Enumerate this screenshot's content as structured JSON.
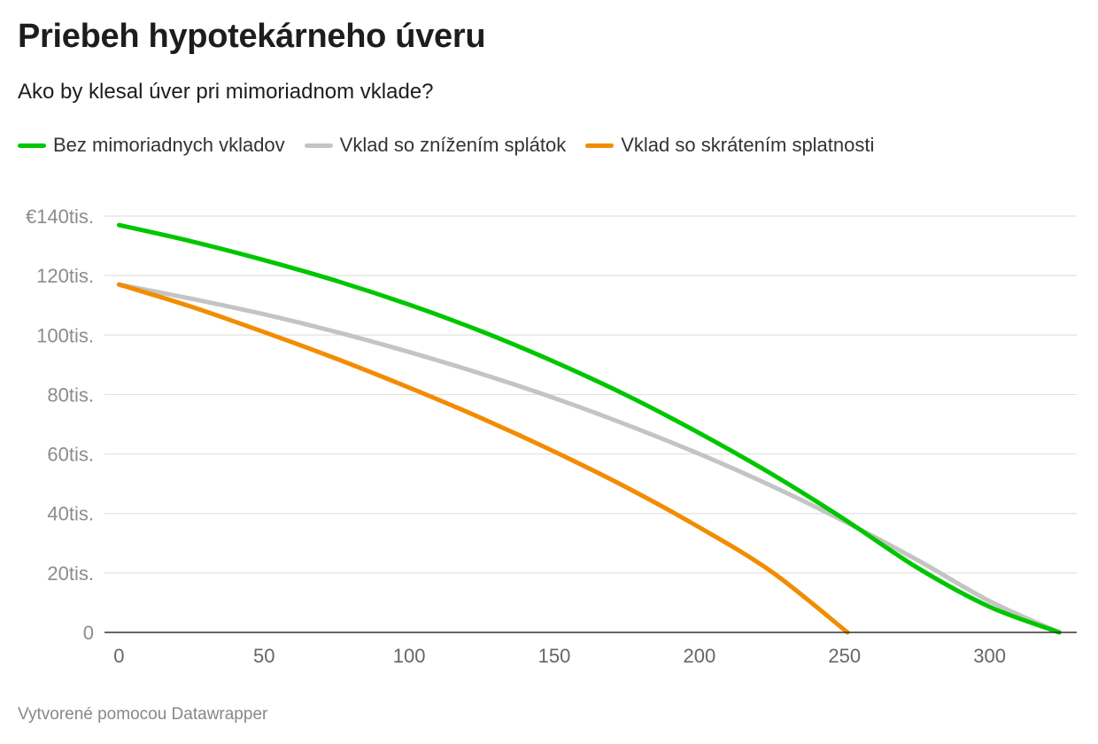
{
  "title": "Priebeh hypotekárneho úveru",
  "subtitle": "Ako by klesal úver pri mimoriadnom vklade?",
  "footer": "Vytvorené pomocou Datawrapper",
  "chart_data": {
    "type": "line",
    "title": "Priebeh hypotekárneho úveru",
    "subtitle": "Ako by klesal úver pri mimoriadnom vklade?",
    "xlabel": "",
    "ylabel": "",
    "xlim": [
      -5,
      330
    ],
    "ylim": [
      0,
      140000
    ],
    "x_ticks": [
      0,
      50,
      100,
      150,
      200,
      250,
      300
    ],
    "y_ticks": [
      0,
      20000,
      40000,
      60000,
      80000,
      100000,
      120000,
      140000
    ],
    "y_tick_labels": [
      "0",
      "20tis.",
      "40tis.",
      "60tis.",
      "80tis.",
      "100tis.",
      "120tis.",
      "€140tis."
    ],
    "grid": true,
    "legend": "top-left",
    "series": [
      {
        "name": "Bez mimoriadnych vkladov",
        "color": "#00c600",
        "points": [
          [
            0,
            137000
          ],
          [
            25,
            131500
          ],
          [
            50,
            125200
          ],
          [
            75,
            118200
          ],
          [
            100,
            110200
          ],
          [
            125,
            101200
          ],
          [
            150,
            91000
          ],
          [
            175,
            79700
          ],
          [
            200,
            67000
          ],
          [
            225,
            53200
          ],
          [
            250,
            38000
          ],
          [
            275,
            21800
          ],
          [
            300,
            8600
          ],
          [
            324,
            0
          ]
        ]
      },
      {
        "name": "Vklad so znížením splátok",
        "color": "#c4c4c4",
        "points": [
          [
            0,
            117000
          ],
          [
            25,
            112200
          ],
          [
            50,
            107000
          ],
          [
            75,
            101000
          ],
          [
            100,
            94300
          ],
          [
            125,
            86900
          ],
          [
            150,
            78800
          ],
          [
            175,
            69800
          ],
          [
            200,
            60000
          ],
          [
            225,
            49200
          ],
          [
            250,
            37300
          ],
          [
            275,
            24400
          ],
          [
            300,
            10500
          ],
          [
            324,
            0
          ]
        ]
      },
      {
        "name": "Vklad so skrátením splatnosti",
        "color": "#f28c00",
        "points": [
          [
            0,
            117000
          ],
          [
            25,
            109500
          ],
          [
            50,
            101000
          ],
          [
            75,
            92000
          ],
          [
            100,
            82300
          ],
          [
            125,
            72000
          ],
          [
            150,
            60800
          ],
          [
            175,
            48700
          ],
          [
            200,
            35300
          ],
          [
            225,
            20300
          ],
          [
            251,
            0
          ]
        ]
      }
    ]
  }
}
